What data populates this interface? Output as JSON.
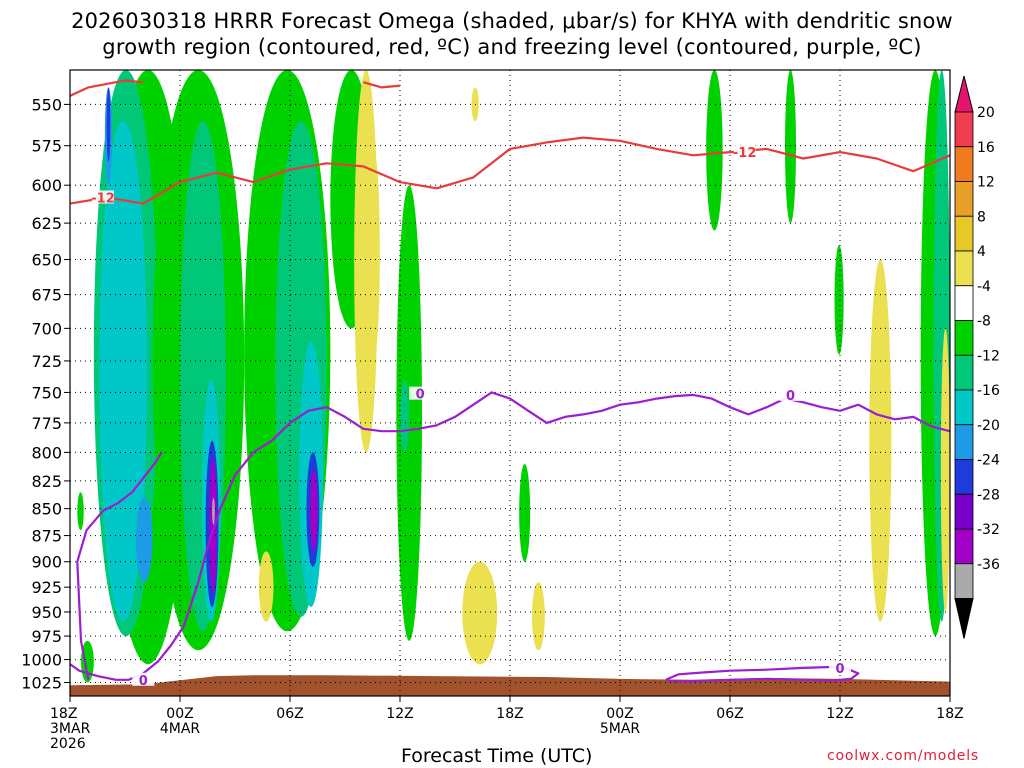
{
  "title": {
    "line1": "2026030318 HRRR Forecast Omega (shaded, μbar/s) for KHYA with dendritic snow",
    "line2": "growth region (contoured, red, ºC) and freezing level (contoured, purple, ºC)"
  },
  "footer": {
    "xlabel": "Forecast Time (UTC)",
    "credit": "coolwx.com/models"
  },
  "chart_data": {
    "type": "heatmap",
    "title": "2026030318 HRRR Forecast Omega (shaded, μbar/s) for KHYA with dendritic snow growth region (contoured, red, ºC) and freezing level (contoured, purple, ºC)",
    "xlabel": "Forecast Time (UTC)",
    "ylabel": "",
    "x_range_hours": [
      0,
      48
    ],
    "y_range_mb": [
      530,
      1040
    ],
    "y_scale": "log-pressure",
    "grid": true,
    "y_ticks": [
      550,
      575,
      600,
      625,
      650,
      675,
      700,
      725,
      750,
      775,
      800,
      825,
      850,
      875,
      900,
      925,
      950,
      975,
      1000,
      1025
    ],
    "x_ticks": [
      {
        "h": 0,
        "lines": [
          "18Z",
          "3MAR",
          "2026"
        ]
      },
      {
        "h": 6,
        "lines": [
          "00Z",
          "4MAR"
        ]
      },
      {
        "h": 12,
        "lines": [
          "06Z"
        ]
      },
      {
        "h": 18,
        "lines": [
          "12Z"
        ]
      },
      {
        "h": 24,
        "lines": [
          "18Z"
        ]
      },
      {
        "h": 30,
        "lines": [
          "00Z",
          "5MAR"
        ]
      },
      {
        "h": 36,
        "lines": [
          "06Z"
        ]
      },
      {
        "h": 42,
        "lines": [
          "12Z"
        ]
      },
      {
        "h": 48,
        "lines": [
          "18Z"
        ]
      }
    ],
    "colorbar": {
      "labels": [
        "20",
        "16",
        "12",
        "8",
        "4",
        "-4",
        "-8",
        "-12",
        "-16",
        "-20",
        "-24",
        "-28",
        "-32",
        "-36"
      ],
      "bins": [
        {
          "label_pos": 20,
          "color": "#f03c50"
        },
        {
          "label_pos": 16,
          "color": "#f07a1e"
        },
        {
          "label_pos": 12,
          "color": "#e8a028"
        },
        {
          "label_pos": 8,
          "color": "#e8c828"
        },
        {
          "label_pos": 4,
          "color": "#ebe050"
        },
        {
          "label_pos": -4,
          "color": "#ffffff"
        },
        {
          "label_pos": -8,
          "color": "#00d200"
        },
        {
          "label_pos": -12,
          "color": "#00c878"
        },
        {
          "label_pos": -16,
          "color": "#00c8c8"
        },
        {
          "label_pos": -20,
          "color": "#1e9be6"
        },
        {
          "label_pos": -24,
          "color": "#1e3cdc"
        },
        {
          "label_pos": -28,
          "color": "#7800c8"
        },
        {
          "label_pos": -32,
          "color": "#a000c8"
        },
        {
          "label_pos": -36,
          "color": "#aaaaaa"
        }
      ],
      "top_arrow_color": "#e6146e",
      "bottom_arrow_color": "#000000"
    },
    "omega_fields": [
      {
        "value": -6,
        "h": [
          2,
          6.5
        ],
        "p": [
          530,
          1005
        ]
      },
      {
        "value": -10,
        "h": [
          1.3,
          4.8
        ],
        "p": [
          530,
          975
        ]
      },
      {
        "value": -14,
        "h": [
          1.6,
          4.2
        ],
        "p": [
          560,
          960
        ]
      },
      {
        "value": -18,
        "h": [
          1.9,
          2.3
        ],
        "p": [
          540,
          600
        ]
      },
      {
        "value": -22,
        "h": [
          2.0,
          2.2
        ],
        "p": [
          540,
          585
        ]
      },
      {
        "value": -18,
        "h": [
          3.6,
          4.5
        ],
        "p": [
          840,
          920
        ]
      },
      {
        "value": -6,
        "h": [
          4.5,
          9.5
        ],
        "p": [
          530,
          990
        ]
      },
      {
        "value": -10,
        "h": [
          6.0,
          8.5
        ],
        "p": [
          560,
          970
        ]
      },
      {
        "value": -14,
        "h": [
          7.2,
          8.2
        ],
        "p": [
          740,
          960
        ]
      },
      {
        "value": -22,
        "h": [
          7.4,
          8.1
        ],
        "p": [
          790,
          945
        ]
      },
      {
        "value": -30,
        "h": [
          7.6,
          8.0
        ],
        "p": [
          805,
          930
        ]
      },
      {
        "value": -34,
        "h": [
          7.75,
          7.9
        ],
        "p": [
          840,
          865
        ]
      },
      {
        "value": -6,
        "h": [
          9.5,
          14.2
        ],
        "p": [
          530,
          970
        ]
      },
      {
        "value": -10,
        "h": [
          11.2,
          14
        ],
        "p": [
          560,
          955
        ]
      },
      {
        "value": -14,
        "h": [
          12.5,
          13.8
        ],
        "p": [
          710,
          945
        ]
      },
      {
        "value": -22,
        "h": [
          12.9,
          13.6
        ],
        "p": [
          800,
          905
        ]
      },
      {
        "value": -30,
        "h": [
          13.1,
          13.5
        ],
        "p": [
          815,
          890
        ]
      },
      {
        "value": -6,
        "h": [
          14.2,
          16.5
        ],
        "p": [
          530,
          700
        ]
      },
      {
        "value": 6,
        "h": [
          15.5,
          16.8
        ],
        "p": [
          530,
          800
        ]
      },
      {
        "value": 6,
        "h": [
          16.3,
          16.9
        ],
        "p": [
          580,
          720
        ]
      },
      {
        "value": -6,
        "h": [
          17.8,
          19.2
        ],
        "p": [
          600,
          980
        ]
      },
      {
        "value": -10,
        "h": [
          18.0,
          18.5
        ],
        "p": [
          740,
          800
        ]
      },
      {
        "value": -6,
        "h": [
          24.5,
          25.1
        ],
        "p": [
          810,
          900
        ]
      },
      {
        "value": 6,
        "h": [
          21.4,
          23.3
        ],
        "p": [
          900,
          1005
        ]
      },
      {
        "value": 6,
        "h": [
          25.2,
          25.9
        ],
        "p": [
          920,
          990
        ]
      },
      {
        "value": 6,
        "h": [
          10.3,
          11.1
        ],
        "p": [
          890,
          960
        ]
      },
      {
        "value": -6,
        "h": [
          0.6,
          1.3
        ],
        "p": [
          980,
          1025
        ]
      },
      {
        "value": -6,
        "h": [
          0.4,
          0.75
        ],
        "p": [
          835,
          870
        ]
      },
      {
        "value": -6,
        "h": [
          34.7,
          35.6
        ],
        "p": [
          530,
          630
        ]
      },
      {
        "value": -6,
        "h": [
          39.0,
          39.6
        ],
        "p": [
          530,
          625
        ]
      },
      {
        "value": -6,
        "h": [
          41.7,
          42.2
        ],
        "p": [
          640,
          720
        ]
      },
      {
        "value": 6,
        "h": [
          43.6,
          44.8
        ],
        "p": [
          650,
          960
        ]
      },
      {
        "value": 6,
        "h": [
          21.9,
          22.3
        ],
        "p": [
          540,
          560
        ]
      },
      {
        "value": -6,
        "h": [
          46.4,
          48
        ],
        "p": [
          530,
          975
        ]
      },
      {
        "value": -10,
        "h": [
          47.1,
          48
        ],
        "p": [
          530,
          960
        ]
      },
      {
        "value": 6,
        "h": [
          47.5,
          48
        ],
        "p": [
          700,
          950
        ]
      }
    ],
    "dgz_contour_minus12": {
      "h": [
        0,
        2,
        4,
        6,
        8,
        10,
        12,
        14,
        16,
        18,
        20,
        22,
        24,
        26,
        28,
        30,
        32,
        34,
        36,
        38,
        40,
        42,
        44,
        46,
        48
      ],
      "p": [
        612,
        608,
        612,
        598,
        592,
        598,
        590,
        586,
        588,
        598,
        602,
        595,
        577,
        573,
        570,
        572,
        577,
        581,
        579,
        577,
        583,
        579,
        583,
        591,
        581
      ]
    },
    "dgz_top_contour": {
      "h": [
        0,
        1,
        2,
        3,
        4
      ],
      "p": [
        545,
        540,
        538,
        536,
        537
      ]
    },
    "dgz_top_contour_right": {
      "h": [
        16,
        17,
        18
      ],
      "p": [
        537,
        540,
        539
      ]
    },
    "freezing_level_contour": {
      "h": [
        0,
        0.5,
        1.5,
        2.5,
        3.2,
        4.0,
        4.8,
        5.5,
        6.2,
        7.0,
        7.6,
        8.2,
        9.0,
        10.0,
        11.0,
        12.0,
        13.0,
        14.0,
        15.0,
        16.0,
        17.0,
        18.0,
        19.0,
        20.0,
        21.0,
        22.0,
        23.0,
        24.0,
        25.0,
        26.0,
        27.0,
        28.0,
        29.0,
        30.0,
        31.0,
        32.0,
        33.0,
        34.0,
        35.0,
        36.0,
        37.0,
        38.0,
        39.0,
        40.0,
        41.0,
        42.0,
        43.0,
        44.0,
        45.0,
        46.0,
        47.0,
        48.0
      ],
      "p": [
        1005,
        1012,
        1018,
        1022,
        1022,
        1015,
        1002,
        985,
        965,
        920,
        880,
        850,
        820,
        800,
        790,
        775,
        765,
        762,
        770,
        780,
        782,
        782,
        780,
        777,
        770,
        760,
        750,
        755,
        765,
        775,
        770,
        768,
        765,
        760,
        758,
        755,
        753,
        752,
        755,
        762,
        768,
        762,
        755,
        758,
        762,
        765,
        760,
        768,
        772,
        770,
        778,
        782
      ],
      "closing": {
        "h": [
          1.0,
          0.6,
          0.4,
          0.9,
          1.8,
          2.6,
          3.4,
          4.6,
          5.0
        ],
        "p": [
          1022,
          980,
          900,
          870,
          852,
          845,
          835,
          810,
          800
        ]
      }
    },
    "freezing_level_lower": {
      "h": [
        32.5,
        33.2,
        34.5,
        36.0,
        38.0,
        40.0,
        41.5,
        42.4,
        43.0,
        42.6,
        41.5,
        40.0,
        38.0,
        36.0,
        34.5,
        33.3,
        32.5
      ],
      "p": [
        1022,
        1016,
        1014,
        1012,
        1011,
        1009,
        1008,
        1010,
        1015,
        1021,
        1023,
        1022,
        1021,
        1022,
        1023,
        1024,
        1022
      ]
    },
    "contour_labels": [
      {
        "text": "-12",
        "h": 1.8,
        "p": 608,
        "color": "#e83c3c"
      },
      {
        "text": "-12",
        "h": 36.8,
        "p": 579,
        "color": "#e83c3c"
      },
      {
        "text": "0",
        "h": 19.1,
        "p": 751,
        "color": "#9b1ecf"
      },
      {
        "text": "0",
        "h": 39.3,
        "p": 752,
        "color": "#9b1ecf"
      },
      {
        "text": "0",
        "h": 42.0,
        "p": 1009,
        "color": "#9b1ecf"
      },
      {
        "text": "0",
        "h": 4.0,
        "p": 1022,
        "color": "#9b1ecf"
      }
    ],
    "terrain": {
      "color": "#a0522d",
      "h": [
        0,
        4,
        8,
        10,
        14,
        20,
        26,
        30,
        34,
        38,
        42,
        46,
        48
      ],
      "p": [
        1028,
        1027,
        1018,
        1017,
        1017,
        1018,
        1019,
        1021,
        1022,
        1020,
        1021,
        1023,
        1024
      ]
    }
  }
}
